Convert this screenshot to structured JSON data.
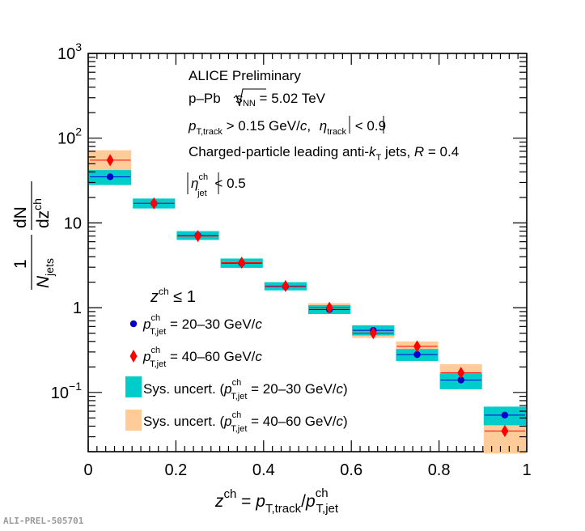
{
  "chart_data": {
    "type": "scatter",
    "title": "",
    "xlabel": "z^ch = p_T,track / p^ch_T,jet",
    "ylabel": "1/N_jets dN/dz^ch",
    "xlim": [
      0,
      1
    ],
    "ylim": [
      0.02,
      1000
    ],
    "yscale": "log",
    "x_ticks": [
      {
        "value": 0,
        "label": "0"
      },
      {
        "value": 0.2,
        "label": "0.2"
      },
      {
        "value": 0.4,
        "label": "0.4"
      },
      {
        "value": 0.6,
        "label": "0.6"
      },
      {
        "value": 0.8,
        "label": "0.8"
      },
      {
        "value": 1,
        "label": "1"
      }
    ],
    "y_ticks": [
      {
        "value": 0.1,
        "base": "10",
        "exp": "−1"
      },
      {
        "value": 1,
        "base": "1",
        "exp": ""
      },
      {
        "value": 10,
        "base": "10",
        "exp": ""
      },
      {
        "value": 100,
        "base": "10",
        "exp": "2"
      },
      {
        "value": 1000,
        "base": "10",
        "exp": "3"
      }
    ],
    "bin_edges": [
      0,
      0.1,
      0.2,
      0.3,
      0.4,
      0.5,
      0.6,
      0.7,
      0.8,
      0.9,
      1.0
    ],
    "series": [
      {
        "name": "p^ch_T,jet = 20–30 GeV/c",
        "marker": "circle",
        "color": "#0000cc",
        "sys_color": "#00cccc",
        "x": [
          0.05,
          0.15,
          0.25,
          0.35,
          0.45,
          0.55,
          0.65,
          0.75,
          0.85,
          0.95
        ],
        "y": [
          35,
          17,
          7.1,
          3.35,
          1.78,
          0.95,
          0.54,
          0.28,
          0.14,
          0.054
        ],
        "sys_low": [
          28,
          14.8,
          6.3,
          2.95,
          1.6,
          0.84,
          0.47,
          0.235,
          0.109,
          0.041
        ],
        "sys_high": [
          42,
          19.4,
          8.0,
          3.8,
          2.0,
          1.07,
          0.62,
          0.325,
          0.168,
          0.068
        ]
      },
      {
        "name": "p^ch_T,jet = 40–60 GeV/c",
        "marker": "diamond",
        "color": "#ff0000",
        "sys_color": "#ffcc99",
        "x": [
          0.05,
          0.15,
          0.25,
          0.35,
          0.45,
          0.55,
          0.65,
          0.75,
          0.85,
          0.95
        ],
        "y": [
          55,
          17,
          7.0,
          3.4,
          1.8,
          1.0,
          0.5,
          0.35,
          0.17,
          0.035
        ],
        "sys_low": [
          40,
          15.2,
          6.4,
          3.05,
          1.62,
          0.87,
          0.44,
          0.29,
          0.135,
          0.019
        ],
        "sys_high": [
          72,
          18.8,
          7.7,
          3.75,
          1.97,
          1.13,
          0.58,
          0.4,
          0.215,
          0.047
        ]
      }
    ]
  },
  "annotations": {
    "experiment": "ALICE Preliminary",
    "system_prefix": "p–Pb ",
    "system_var": "s",
    "system_sub": "NN",
    "system_value": " = 5.02 TeV",
    "track_cut_var": "p",
    "track_cut_sub": "T,track",
    "track_cut_value": " > 0.15 GeV/",
    "track_cut_c": "c",
    "eta_track_var": "η",
    "eta_track_sub": "track",
    "eta_track_value": " < 0.9",
    "jet_prefix": "Charged-particle leading anti-",
    "jet_k": "k",
    "jet_k_sub": "T",
    "jet_mid": " jets, ",
    "jet_R": "R",
    "jet_R_value": " = 0.4",
    "eta_jet_var": "η",
    "eta_jet_sup": "ch",
    "eta_jet_sub": "jet",
    "eta_jet_value": " < 0.5"
  },
  "legend": {
    "header_var": "z",
    "header_sup": "ch",
    "header_value": " ≤ 1",
    "entries": [
      {
        "prefix": "",
        "var": "p",
        "sup": "ch",
        "sub": "T,jet",
        "value": " = 20–30 GeV/",
        "unit": "c",
        "suffix": ""
      },
      {
        "prefix": "",
        "var": "p",
        "sup": "ch",
        "sub": "T,jet",
        "value": " = 40–60 GeV/",
        "unit": "c",
        "suffix": ""
      },
      {
        "prefix": "Sys. uncert. (",
        "var": "p",
        "sup": "ch",
        "sub": "T,jet",
        "value": " = 20–30 GeV/",
        "unit": "c",
        "suffix": ")"
      },
      {
        "prefix": "Sys. uncert. (",
        "var": "p",
        "sup": "ch",
        "sub": "T,jet",
        "value": " = 40–60 GeV/",
        "unit": "c",
        "suffix": ")"
      }
    ]
  },
  "axis_text": {
    "x": {
      "var": "z",
      "sup": "ch",
      "eq": " = ",
      "num": "p",
      "num_sub": "T,track",
      "slash": "/",
      "den": "p",
      "den_sup": "ch",
      "den_sub": "T,jet"
    },
    "y": {
      "one": "1",
      "n": "N",
      "n_sub": "jets",
      "dn": "dN",
      "dz": "dz",
      "dz_sup": "ch"
    }
  },
  "preprint_id": "ALI-PREL-505701"
}
